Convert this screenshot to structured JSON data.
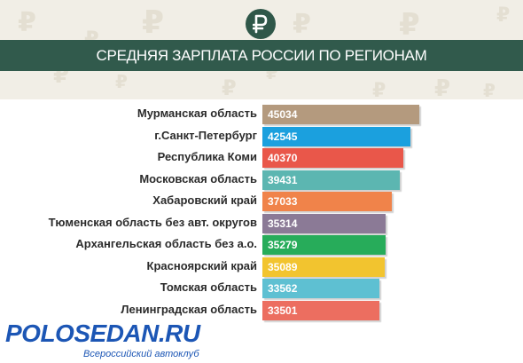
{
  "title": "СРЕДНЯЯ ЗАРПЛАТА РОССИИ ПО РЕГИОНАМ",
  "badge_icon": "ruble-icon",
  "watermark": {
    "main": "POLOSEDAN.RU",
    "sub": "Всероссийский автоклуб"
  },
  "colors": {
    "title_band": "#315a4c",
    "background": "#f1eee6"
  },
  "chart_data": {
    "type": "bar",
    "orientation": "horizontal",
    "title": "СРЕДНЯЯ ЗАРПЛАТА РОССИИ ПО РЕГИОНАМ",
    "categories": [
      "Мурманская область",
      "г.Санкт-Петербург",
      "Республика Коми",
      "Московская область",
      "Хабаровский край",
      "Тюменская область без авт. округов",
      "Архангельская область без а.о.",
      "Красноярский край",
      "Томская область",
      "Ленинградская область"
    ],
    "values": [
      45034,
      42545,
      40370,
      39431,
      37033,
      35314,
      35279,
      35089,
      33562,
      33501
    ],
    "bar_colors": [
      "#b49a7e",
      "#1ba0de",
      "#e9574a",
      "#5cb6b1",
      "#f0834a",
      "#8b7a96",
      "#27ac5a",
      "#f2c42f",
      "#5ec0d2",
      "#ec6e60"
    ],
    "value_labels": [
      "45034",
      "42545",
      "40370",
      "39431",
      "37033",
      "35314",
      "35279",
      "35089",
      "33562",
      "33501"
    ],
    "xlim": [
      0,
      45034
    ],
    "grid": false,
    "legend": "none"
  }
}
